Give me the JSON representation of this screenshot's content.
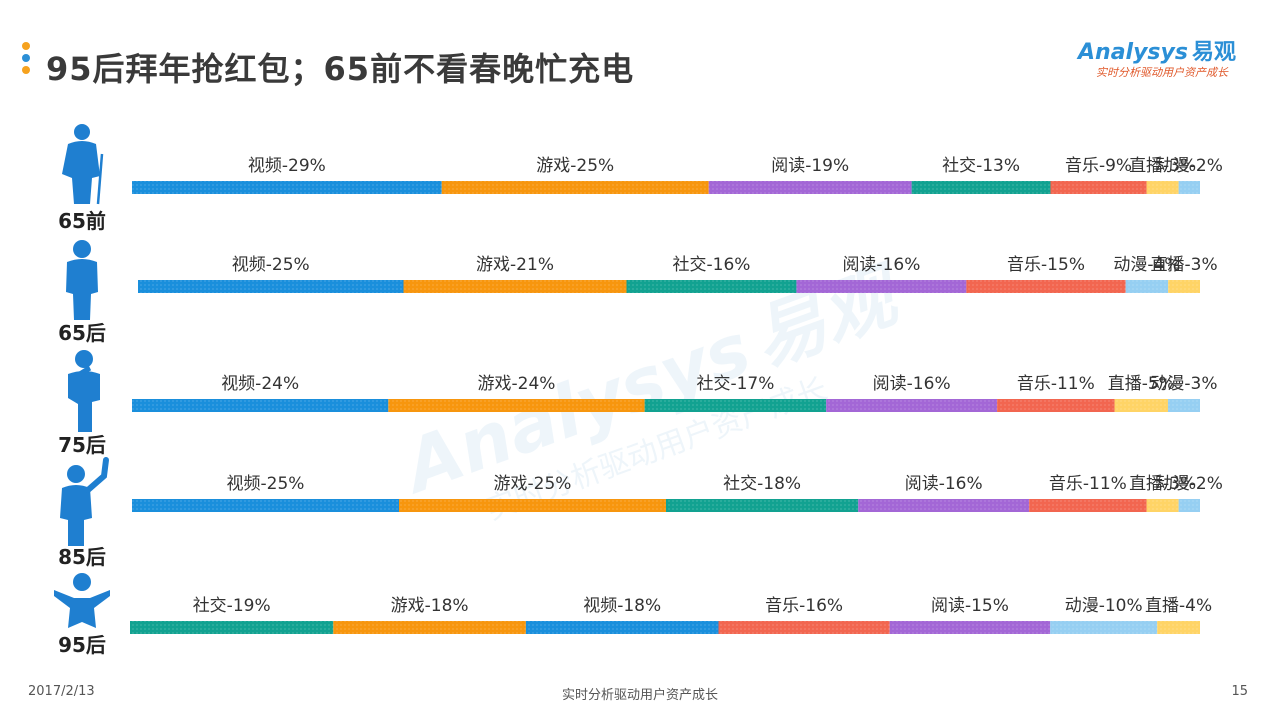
{
  "title": "95后拜年抢红包；65前不看春晚忙充电",
  "title_dots": [
    "#f6a21e",
    "#2b8fd6",
    "#f6a21e"
  ],
  "logo": {
    "brand": "Analysys",
    "brand_cn": "易观",
    "tagline": "实时分析驱动用户资产成长"
  },
  "watermark": {
    "brand": "Analysys",
    "brand_cn": "易观",
    "tagline": "实时分析驱动用户资产成长"
  },
  "footer": {
    "date": "2017/2/13",
    "slogan": "实时分析驱动用户资产成长",
    "page": "15"
  },
  "chart_data": {
    "type": "stacked_bar",
    "orientation": "horizontal",
    "unit": "%",
    "title": "",
    "colors": {
      "视频": "#1a8fdc",
      "游戏": "#f7960e",
      "阅读": "#a367d6",
      "社交": "#12a291",
      "音乐": "#f26650",
      "直播": "#ffd466",
      "动漫": "#96cff2"
    },
    "rows": [
      {
        "label": "65前",
        "icon": "elderly-person-with-cane-icon",
        "segments": [
          {
            "name": "视频",
            "value": 29
          },
          {
            "name": "游戏",
            "value": 25
          },
          {
            "name": "阅读",
            "value": 19
          },
          {
            "name": "社交",
            "value": 13
          },
          {
            "name": "音乐",
            "value": 9
          },
          {
            "name": "直播",
            "value": 3
          },
          {
            "name": "动漫",
            "value": 2
          }
        ]
      },
      {
        "label": "65后",
        "icon": "standing-person-icon",
        "segments": [
          {
            "name": "视频",
            "value": 25
          },
          {
            "name": "游戏",
            "value": 21
          },
          {
            "name": "社交",
            "value": 16
          },
          {
            "name": "阅读",
            "value": 16
          },
          {
            "name": "音乐",
            "value": 15
          },
          {
            "name": "动漫",
            "value": 4
          },
          {
            "name": "直播",
            "value": 3
          }
        ]
      },
      {
        "label": "75后",
        "icon": "thinking-person-icon",
        "segments": [
          {
            "name": "视频",
            "value": 24
          },
          {
            "name": "游戏",
            "value": 24
          },
          {
            "name": "社交",
            "value": 17
          },
          {
            "name": "阅读",
            "value": 16
          },
          {
            "name": "音乐",
            "value": 11
          },
          {
            "name": "直播",
            "value": 5
          },
          {
            "name": "动漫",
            "value": 3
          }
        ]
      },
      {
        "label": "85后",
        "icon": "waving-person-icon",
        "segments": [
          {
            "name": "视频",
            "value": 25
          },
          {
            "name": "游戏",
            "value": 25
          },
          {
            "name": "社交",
            "value": 18
          },
          {
            "name": "阅读",
            "value": 16
          },
          {
            "name": "音乐",
            "value": 11
          },
          {
            "name": "直播",
            "value": 3
          },
          {
            "name": "动漫",
            "value": 2
          }
        ]
      },
      {
        "label": "95后",
        "icon": "jumping-person-icon",
        "segments": [
          {
            "name": "社交",
            "value": 19
          },
          {
            "name": "游戏",
            "value": 18
          },
          {
            "name": "视频",
            "value": 18
          },
          {
            "name": "音乐",
            "value": 16
          },
          {
            "name": "阅读",
            "value": 15
          },
          {
            "name": "动漫",
            "value": 10
          },
          {
            "name": "直播",
            "value": 4
          }
        ]
      }
    ]
  }
}
